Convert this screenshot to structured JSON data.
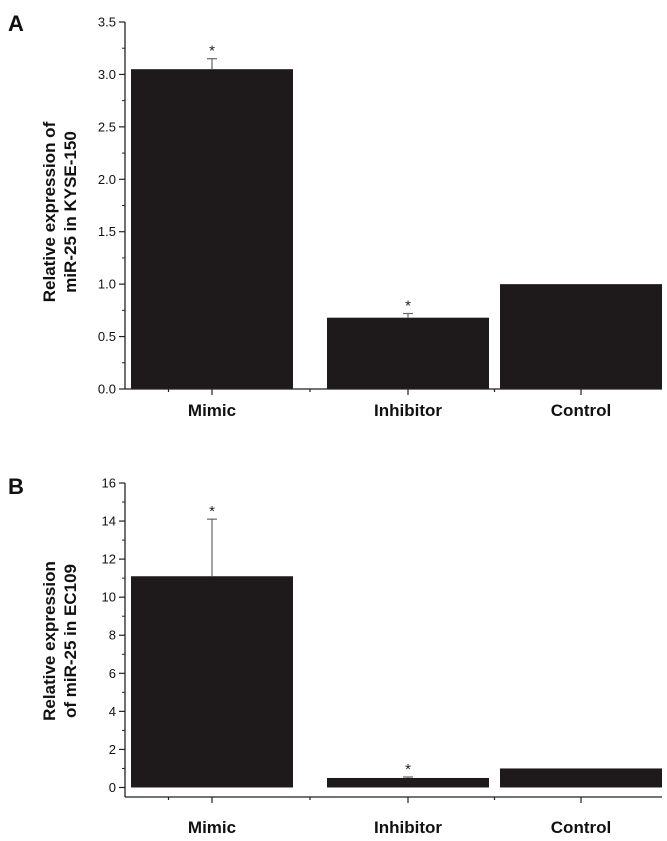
{
  "chart_data": [
    {
      "panel": "A",
      "type": "bar",
      "categories": [
        "Mimic",
        "Inhibitor",
        "Control"
      ],
      "values": [
        3.05,
        0.68,
        1.0
      ],
      "error": [
        0.1,
        0.04,
        0
      ],
      "significance": [
        "*",
        "*",
        ""
      ],
      "ylabel": [
        "Relative expression of",
        "miR-25 in KYSE-150"
      ],
      "ylim": [
        0,
        3.5
      ],
      "yticks": [
        "0.0",
        "0.5",
        "1.0",
        "1.5",
        "2.0",
        "2.5",
        "3.0",
        "3.5"
      ],
      "bar_color": "#1e1a1b",
      "grid": false
    },
    {
      "panel": "B",
      "type": "bar",
      "categories": [
        "Mimic",
        "Inhibitor",
        "Control"
      ],
      "values": [
        11.1,
        0.5,
        1.0
      ],
      "error": [
        3.0,
        0.05,
        0
      ],
      "significance": [
        "*",
        "*",
        ""
      ],
      "ylabel": [
        "Relative expression",
        "of miR-25 in EC109"
      ],
      "ylim": [
        -0.5,
        16
      ],
      "yticks": [
        "0",
        "2",
        "4",
        "6",
        "8",
        "10",
        "12",
        "14",
        "16"
      ],
      "bar_color": "#1e1a1b",
      "grid": false
    }
  ]
}
